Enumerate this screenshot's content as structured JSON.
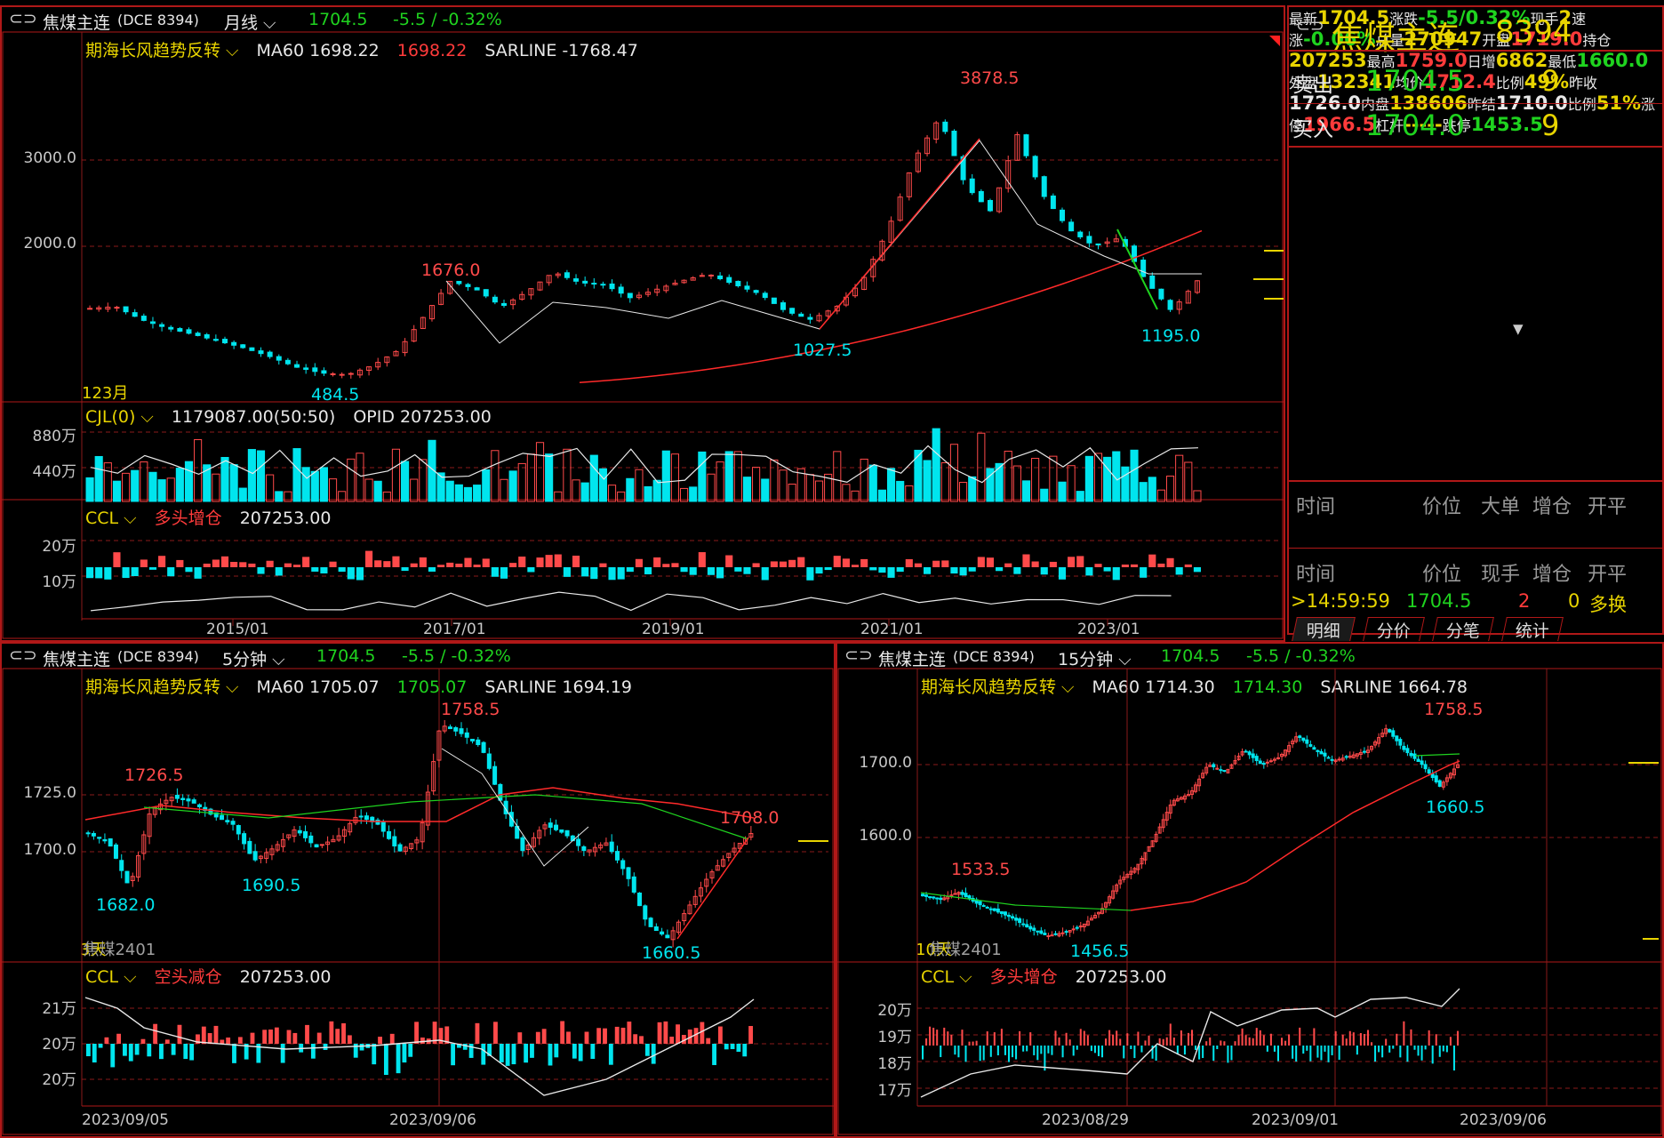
{
  "top": {
    "header": {
      "icon": "link-icon",
      "name": "焦煤主连",
      "code": "(DCE 8394)",
      "period": "月线",
      "price": "1704.5",
      "change": "-5.5 / -0.32%"
    },
    "indicator": {
      "name": "期海长风趋势反转",
      "ma_label": "MA60 1698.22",
      "ma_val": "1698.22",
      "sar": "SARLINE -1768.47"
    },
    "y_ticks": [
      "3000.0",
      "2000.0"
    ],
    "annotations": {
      "high": "3878.5",
      "p1676": "1676.0",
      "p1027": "1027.5",
      "p1195": "1195.0",
      "p484": "484.5"
    },
    "corner_label": "123月",
    "vol": {
      "name": "CJL(0)",
      "value": "1179087.00(50:50)",
      "opid": "OPID 207253.00",
      "y_ticks": [
        "880万",
        "440万"
      ]
    },
    "ccl": {
      "name": "CCL",
      "status": "多头增仓",
      "value": "207253.00",
      "y_ticks": [
        "20万",
        "10万"
      ]
    },
    "x_ticks": [
      "2015/01",
      "2017/01",
      "2019/01",
      "2021/01",
      "2023/01"
    ]
  },
  "quote": {
    "title": "焦煤主连",
    "code": "8394",
    "sell": {
      "label": "卖出",
      "price": "1704.5",
      "qty": "9"
    },
    "buy": {
      "label": "买入",
      "price": "1704.0",
      "qty": "9"
    },
    "rows": [
      [
        "最新",
        "1704.5",
        "涨跌",
        "-5.5/0.32%"
      ],
      [
        "现手",
        "2",
        "速涨",
        "-0.06%"
      ],
      [
        "总量",
        "270947",
        "开盘",
        "1719.0"
      ],
      [
        "持仓",
        "207253",
        "最高",
        "1759.0"
      ],
      [
        "日增",
        "6862",
        "最低",
        "1660.0"
      ],
      [
        "外盘",
        "132341",
        "均价",
        "1712.4"
      ],
      [
        "比例",
        "49%",
        "昨收",
        "1726.0"
      ],
      [
        "内盘",
        "138606",
        "昨结",
        "1710.0"
      ],
      [
        "比例",
        "51%",
        "涨停",
        "1966.5"
      ],
      [
        "杠杆",
        "-----",
        "跌停",
        "1453.5"
      ]
    ],
    "big_header": [
      "时间",
      "价位",
      "大单",
      "增仓",
      "开平"
    ],
    "tick_header": [
      "时间",
      "价位",
      "现手",
      "增仓",
      "开平"
    ],
    "tick": {
      "time": ">14:59:59",
      "price": "1704.5",
      "qty": "2",
      "oi": "0",
      "type": "多换"
    },
    "tabs": [
      "明细",
      "分价",
      "分笔",
      "统计"
    ]
  },
  "bl": {
    "header": {
      "name": "焦煤主连",
      "code": "(DCE 8394)",
      "period": "5分钟",
      "price": "1704.5",
      "change": "-5.5 / -0.32%"
    },
    "indicator": {
      "name": "期海长风趋势反转",
      "ma_label": "MA60 1705.07",
      "ma_val": "1705.07",
      "sar": "SARLINE 1694.19"
    },
    "y_ticks": [
      "1725.0",
      "1700.0"
    ],
    "annotations": {
      "a1758": "1758.5",
      "a1726": "1726.5",
      "a1708": "1708.0",
      "a1682": "1682.0",
      "a1690": "1690.5",
      "a1660": "1660.5"
    },
    "corner_label": "3天",
    "contract": "焦煤2401",
    "ccl": {
      "name": "CCL",
      "status": "空头减仓",
      "value": "207253.00",
      "y_ticks": [
        "21万",
        "20万",
        "20万"
      ]
    },
    "x_ticks": [
      "2023/09/05",
      "2023/09/06"
    ]
  },
  "br": {
    "header": {
      "name": "焦煤主连",
      "code": "(DCE 8394)",
      "period": "15分钟",
      "price": "1704.5",
      "change": "-5.5 / -0.32%"
    },
    "indicator": {
      "name": "期海长风趋势反转",
      "ma_label": "MA60 1714.30",
      "ma_val": "1714.30",
      "sar": "SARLINE 1664.78"
    },
    "y_ticks": [
      "1700.0",
      "1600.0"
    ],
    "annotations": {
      "a1758": "1758.5",
      "a1660": "1660.5",
      "a1533": "1533.5",
      "a1456": "1456.5"
    },
    "corner_label": "10天",
    "contract": "焦煤2401",
    "ccl": {
      "name": "CCL",
      "status": "多头增仓",
      "value": "207253.00",
      "y_ticks": [
        "20万",
        "19万",
        "18万",
        "17万"
      ]
    },
    "x_ticks": [
      "2023/08/29",
      "2023/09/01",
      "2023/09/06"
    ]
  },
  "colors": {
    "up": "#ff4a4a",
    "down": "#00e5ee",
    "border": "#b01818",
    "grid": "#8a1a1a",
    "accent_yellow": "#e8d400",
    "green": "#1fd31f"
  }
}
